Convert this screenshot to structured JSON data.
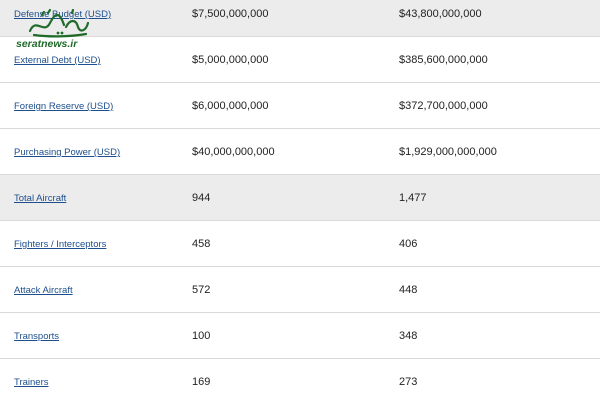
{
  "table": {
    "rows": [
      {
        "label": "Defense Budget (USD)",
        "value_1": "$7,500,000,000",
        "value_2": "$43,800,000,000",
        "shaded": true
      },
      {
        "label": "External Debt (USD)",
        "value_1": "$5,000,000,000",
        "value_2": "$385,600,000,000",
        "shaded": false
      },
      {
        "label": "Foreign Reserve (USD)",
        "value_1": "$6,000,000,000",
        "value_2": "$372,700,000,000",
        "shaded": false
      },
      {
        "label": "Purchasing Power (USD)",
        "value_1": "$40,000,000,000",
        "value_2": "$1,929,000,000,000",
        "shaded": false
      },
      {
        "label": "Total Aircraft",
        "value_1": "944",
        "value_2": "1,477",
        "shaded": true
      },
      {
        "label": "Fighters / Interceptors",
        "value_1": "458",
        "value_2": "406",
        "shaded": false
      },
      {
        "label": "Attack Aircraft",
        "value_1": "572",
        "value_2": "448",
        "shaded": false
      },
      {
        "label": "Transports",
        "value_1": "100",
        "value_2": "348",
        "shaded": false
      },
      {
        "label": "Trainers",
        "value_1": "169",
        "value_2": "273",
        "shaded": false
      }
    ]
  },
  "watermark": {
    "text": "seratnews.ir",
    "color": "#1f6b2a"
  },
  "colors": {
    "link": "#1d4f8c",
    "shaded_row": "#ececec",
    "divider": "#d9d9d9"
  }
}
